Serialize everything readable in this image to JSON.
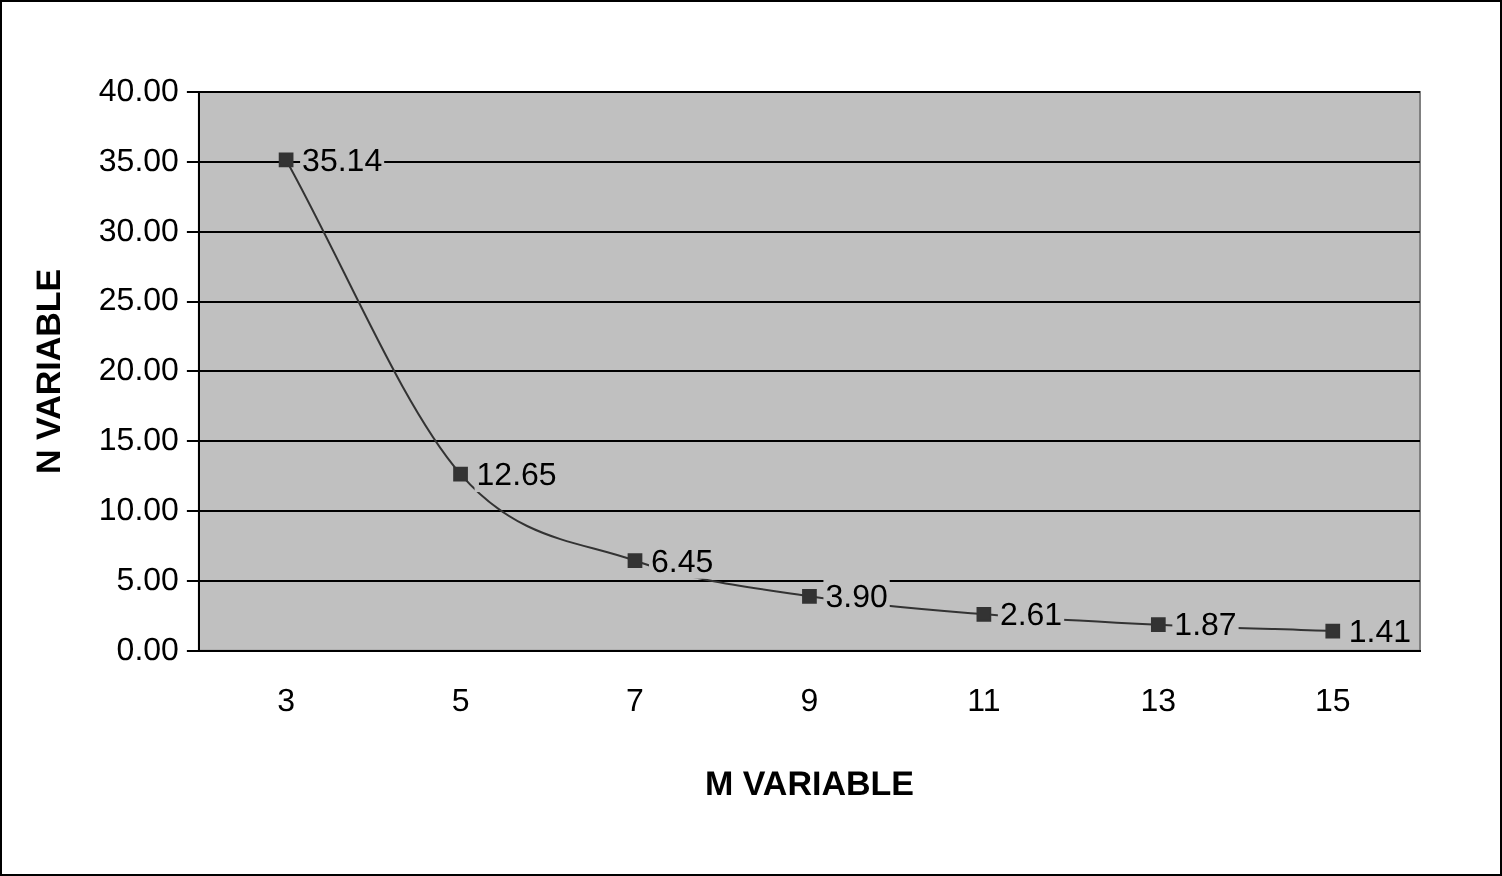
{
  "chart_data": {
    "type": "line",
    "xlabel": "M VARIABLE",
    "ylabel": "N VARIABLE",
    "categories": [
      "3",
      "5",
      "7",
      "9",
      "11",
      "13",
      "15"
    ],
    "series": [
      {
        "color": "#333333",
        "values": [
          35.14,
          12.65,
          6.45,
          3.9,
          2.61,
          1.87,
          1.41
        ],
        "value_labels": [
          "35.14",
          "12.65",
          "6.45",
          "3.90",
          "2.61",
          "1.87",
          "1.41"
        ]
      }
    ],
    "ylim": [
      0,
      40
    ],
    "yticks": [
      {
        "value": 0,
        "label": "0.00"
      },
      {
        "value": 5,
        "label": "5.00"
      },
      {
        "value": 10,
        "label": "10.00"
      },
      {
        "value": 15,
        "label": "15.00"
      },
      {
        "value": 20,
        "label": "20.00"
      },
      {
        "value": 25,
        "label": "25.00"
      },
      {
        "value": 30,
        "label": "30.00"
      },
      {
        "value": 35,
        "label": "35.00"
      },
      {
        "value": 40,
        "label": "40.00"
      }
    ],
    "grid": "y",
    "legend": false,
    "marker": "square",
    "line_style": "solid"
  }
}
